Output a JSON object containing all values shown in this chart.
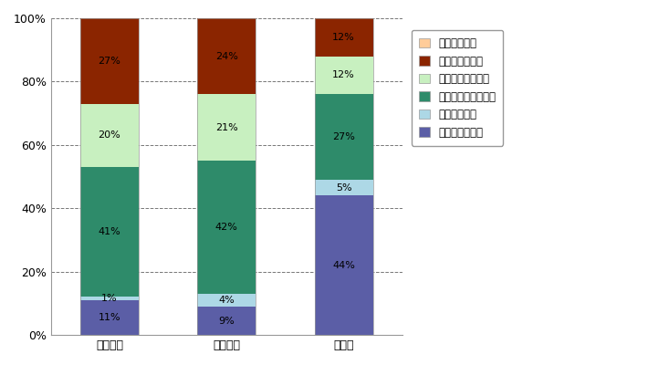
{
  "categories": [
    "設備容量",
    "発電容量",
    "設備数"
  ],
  "series": [
    {
      "name": "バイナリー発電",
      "values": [
        11,
        9,
        44
      ],
      "color": "#5B5EA6"
    },
    {
      "name": "背圧タービン",
      "values": [
        1,
        4,
        5
      ],
      "color": "#ADD8E6"
    },
    {
      "name": "シングルフラッシュ",
      "values": [
        41,
        42,
        27
      ],
      "color": "#2E8B6A"
    },
    {
      "name": "ダブルフラッシュ",
      "values": [
        20,
        21,
        12
      ],
      "color": "#C8F0C0"
    },
    {
      "name": "ドライスチーム",
      "values": [
        27,
        24,
        12
      ],
      "color": "#8B2500"
    },
    {
      "name": "ハイブリッド",
      "values": [
        0,
        0,
        0
      ],
      "color": "#FFCC99"
    }
  ],
  "ylim": [
    0,
    100
  ],
  "yticks": [
    0,
    20,
    40,
    60,
    80,
    100
  ],
  "yticklabels": [
    "0%",
    "20%",
    "40%",
    "60%",
    "80%",
    "100%"
  ],
  "grid_color": "#555555",
  "bar_width": 0.5,
  "background_color": "#FFFFFF",
  "legend_order": [
    5,
    4,
    3,
    2,
    1,
    0
  ],
  "figsize": [
    7.1,
    4.0
  ],
  "dpi": 100
}
